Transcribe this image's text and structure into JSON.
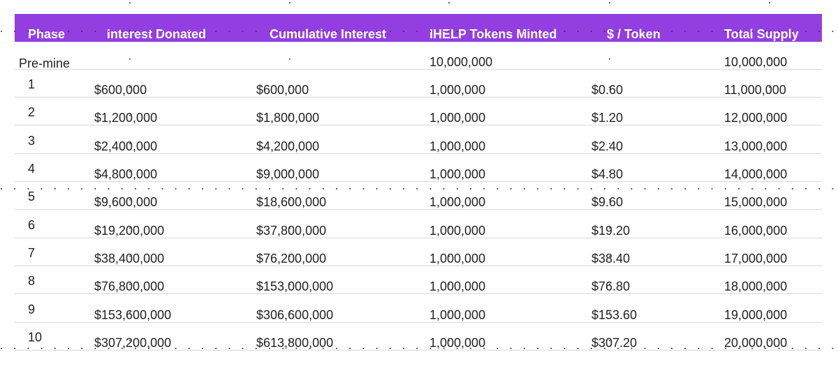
{
  "table": {
    "headers": [
      "Phase",
      "Interest Donated",
      "Cumulative Interest",
      "IHELP Tokens Minted",
      "$ / Token",
      "Total Supply"
    ],
    "rows": [
      [
        "Pre-mine",
        "",
        "",
        "10,000,000",
        "",
        "10,000,000"
      ],
      [
        "1",
        "$600,000",
        "$600,000",
        "1,000,000",
        "$0.60",
        "11,000,000"
      ],
      [
        "2",
        "$1,200,000",
        "$1,800,000",
        "1,000,000",
        "$1.20",
        "12,000,000"
      ],
      [
        "3",
        "$2,400,000",
        "$4,200,000",
        "1,000,000",
        "$2.40",
        "13,000,000"
      ],
      [
        "4",
        "$4,800,000",
        "$9,000,000",
        "1,000,000",
        "$4.80",
        "14,000,000"
      ],
      [
        "5",
        "$9,600,000",
        "$18,600,000",
        "1,000,000",
        "$9.60",
        "15,000,000"
      ],
      [
        "6",
        "$19,200,000",
        "$37,800,000",
        "1,000,000",
        "$19.20",
        "16,000,000"
      ],
      [
        "7",
        "$38,400,000",
        "$76,200,000",
        "1,000,000",
        "$38.40",
        "17,000,000"
      ],
      [
        "8",
        "$76,800,000",
        "$153,000,000",
        "1,000,000",
        "$76.80",
        "18,000,000"
      ],
      [
        "9",
        "$153,600,000",
        "$306,600,000",
        "1,000,000",
        "$153.60",
        "19,000,000"
      ],
      [
        "10",
        "$307,200,000",
        "$613,800,000",
        "1,000,000",
        "$307.20",
        "20,000,000"
      ]
    ]
  },
  "colors": {
    "header_bg": "#923ee0",
    "header_text": "#ffffff",
    "row_rule": "#d8d8d8",
    "body_text": "#222222",
    "dot_color": "#333333"
  }
}
